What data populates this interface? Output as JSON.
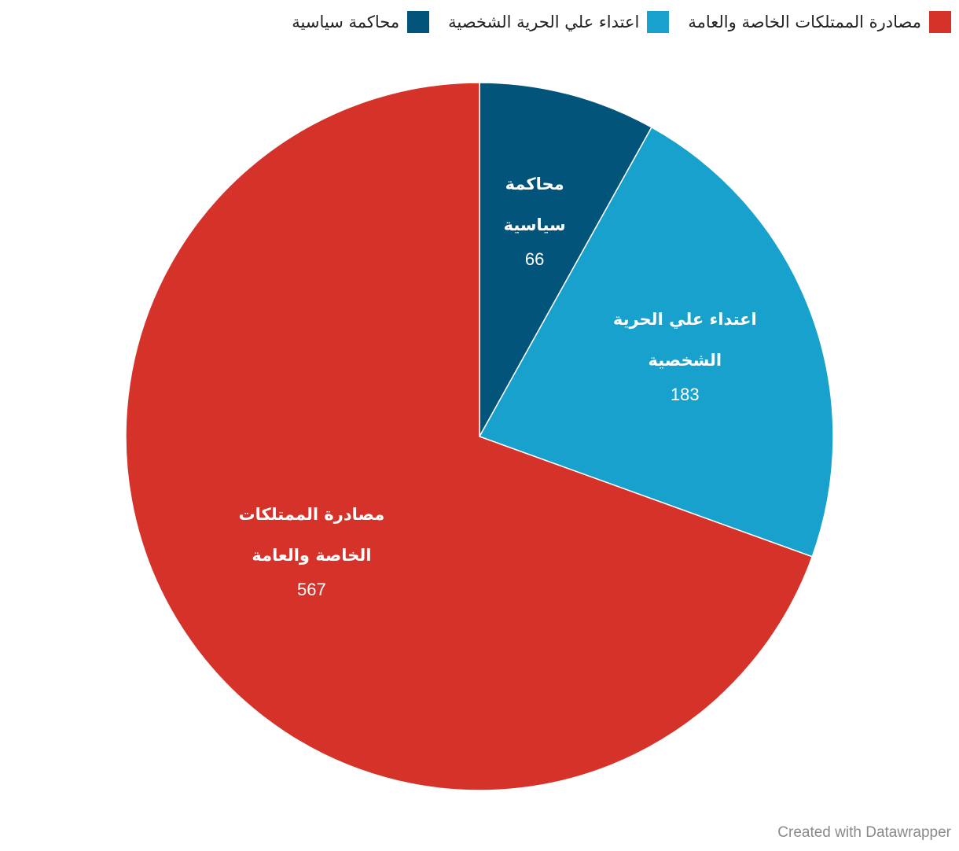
{
  "chart_data": {
    "type": "pie",
    "categories": [
      "محاكمة سياسية",
      "اعتداء علي الحرية الشخصية",
      "مصادرة الممتلكات الخاصة والعامة"
    ],
    "values": [
      66,
      183,
      567
    ],
    "value_labels": [
      "66",
      "183",
      "567"
    ],
    "slice_label_lines": [
      [
        "محاكمة",
        "سياسية"
      ],
      [
        "اعتداء علي الحرية",
        "الشخصية"
      ],
      [
        "مصادرة الممتلكات",
        "الخاصة والعامة"
      ]
    ],
    "colors": [
      "#03547b",
      "#18a1cd",
      "#d5322a"
    ],
    "start": "12 o'clock",
    "direction": "clockwise",
    "legend": {
      "placement": "top-right",
      "items": [
        {
          "label": "مصادرة الممتلكات الخاصة والعامة",
          "color": "#d5322a"
        },
        {
          "label": "اعتداء علي الحرية الشخصية",
          "color": "#18a1cd"
        },
        {
          "label": "محاكمة سياسية",
          "color": "#03547b"
        }
      ]
    }
  },
  "footer": {
    "credit": "Created with Datawrapper"
  }
}
